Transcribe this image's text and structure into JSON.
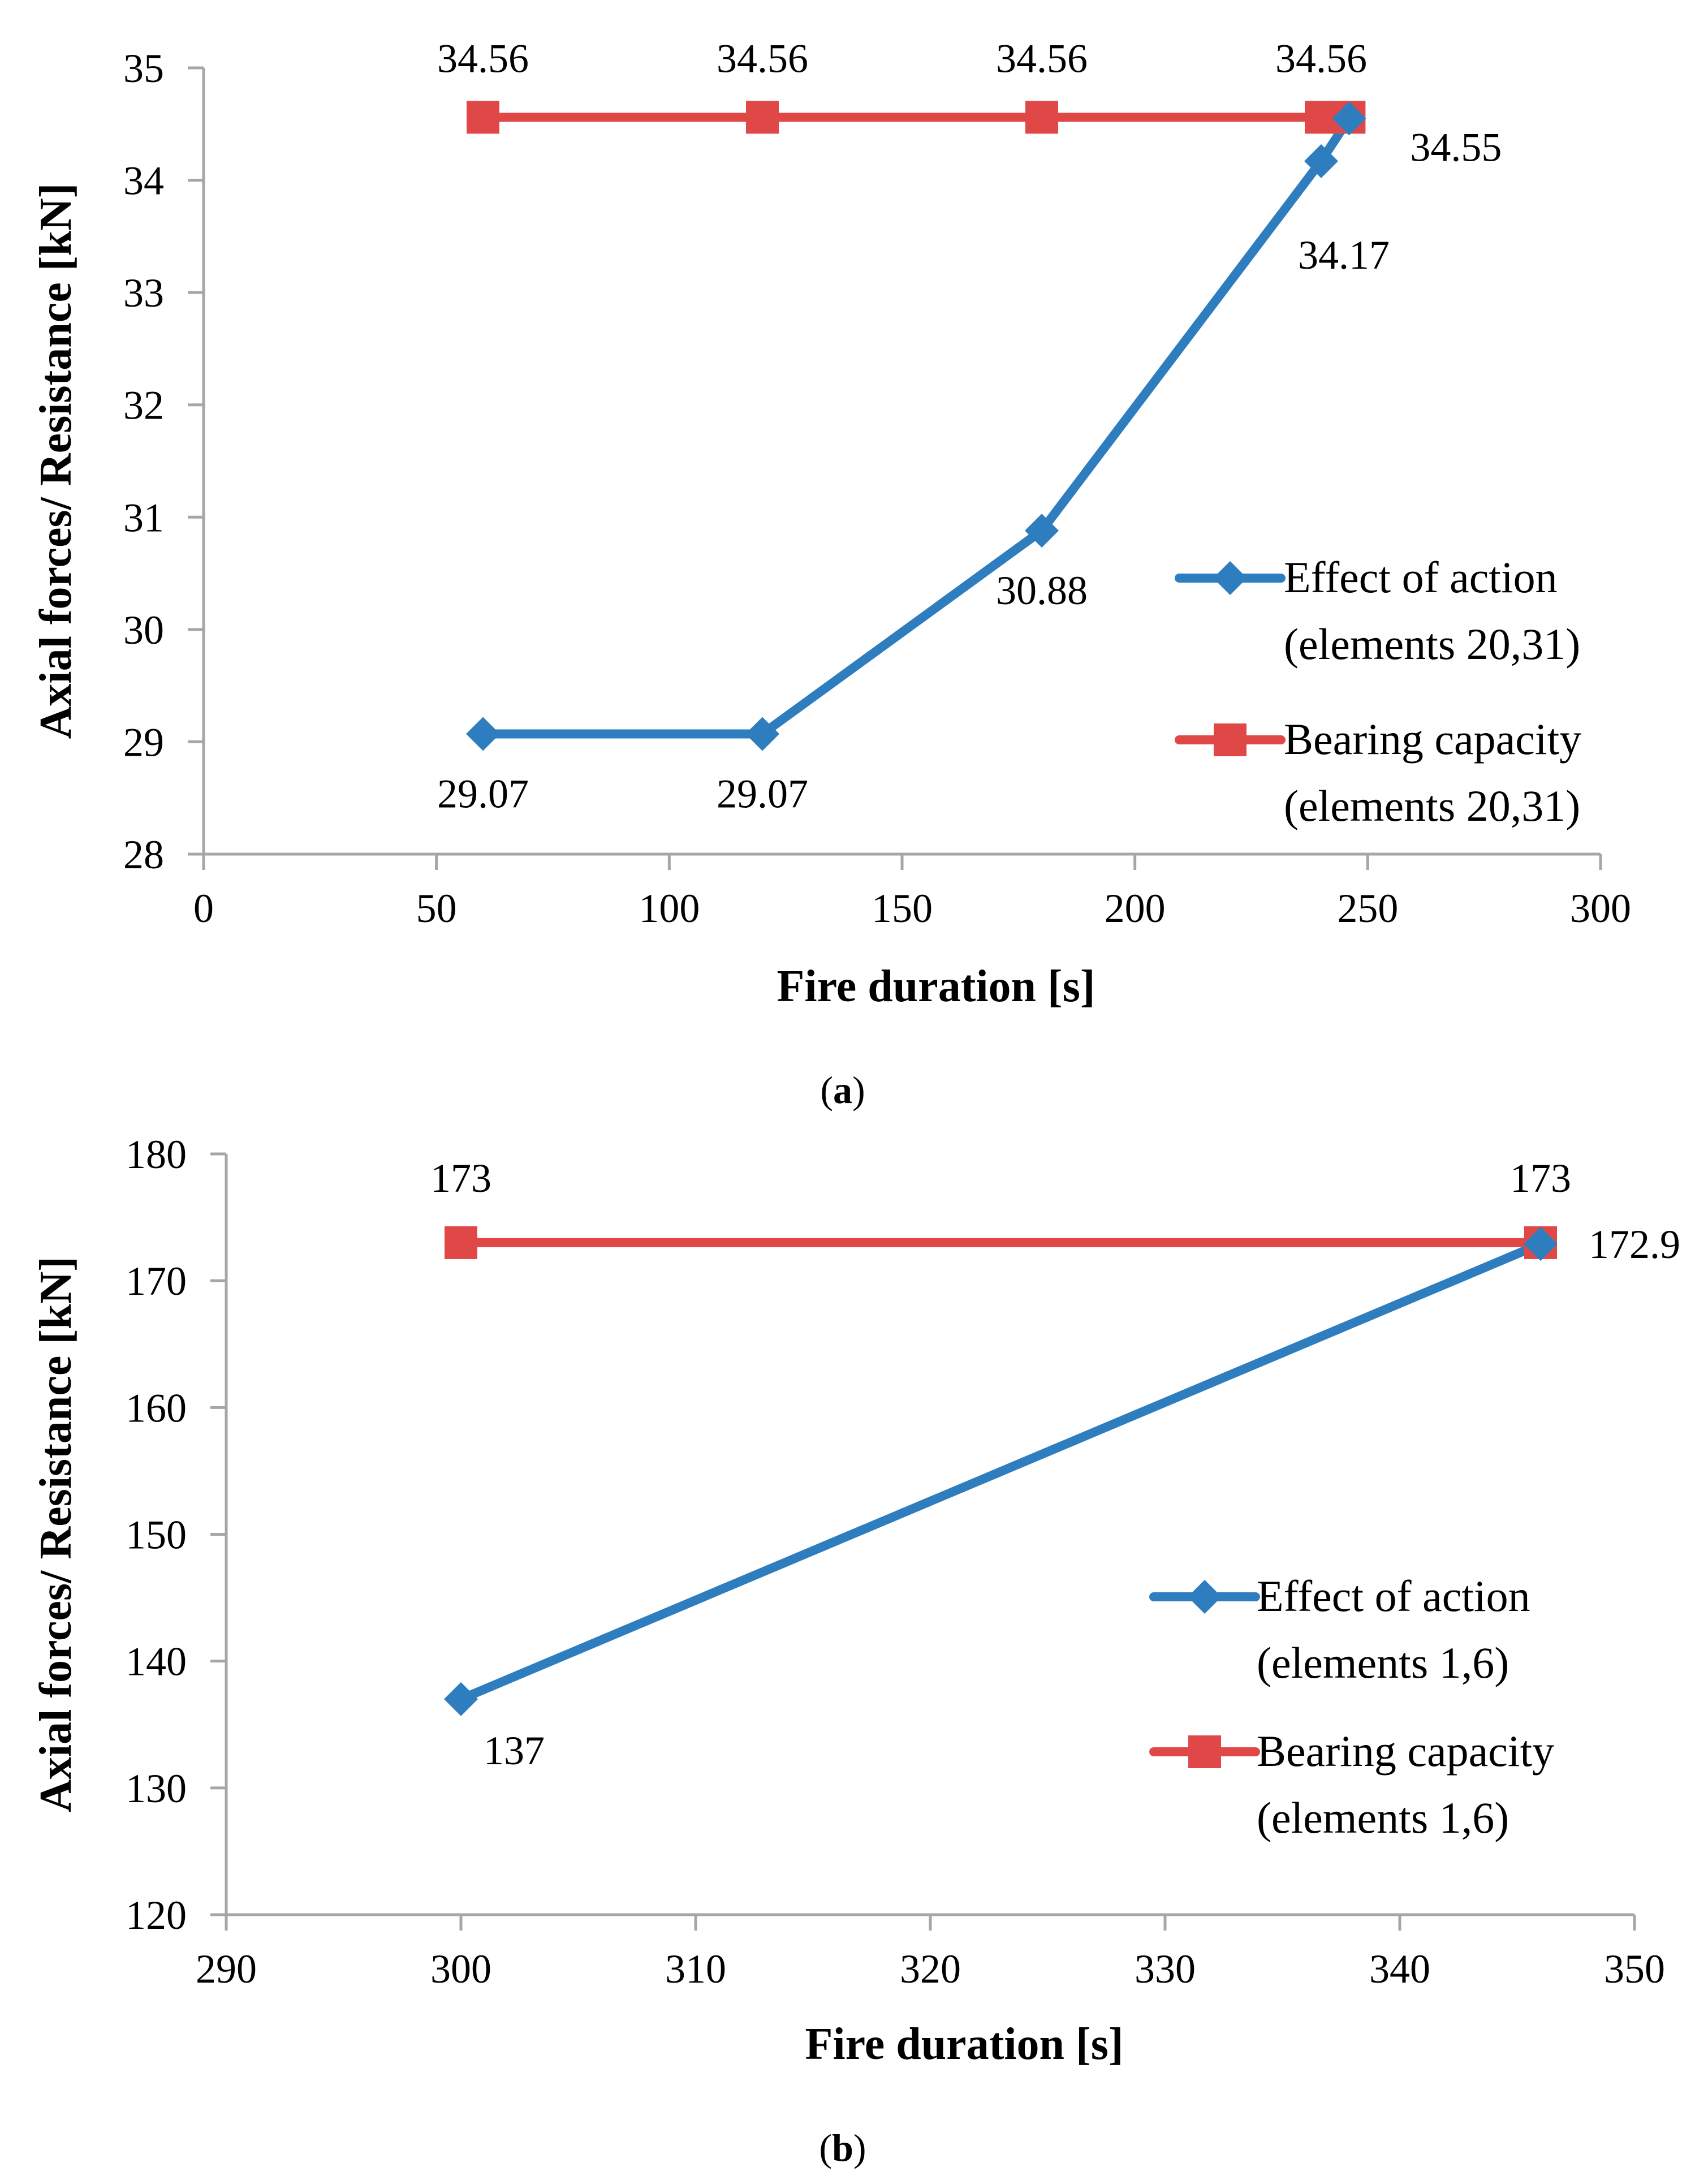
{
  "chart_data": [
    {
      "type": "line",
      "panel": "a",
      "panel_label": {
        "open": "(",
        "letter": "a",
        "close": ")"
      },
      "xlabel": "Fire duration [s]",
      "ylabel": "Axial forces/ Resistance [kN]",
      "xlim": [
        0,
        300
      ],
      "ylim": [
        28,
        35
      ],
      "x_ticks": [
        "0",
        "50",
        "100",
        "150",
        "200",
        "250",
        "300"
      ],
      "y_ticks": [
        "28",
        "29",
        "30",
        "31",
        "32",
        "33",
        "34",
        "35"
      ],
      "grid": false,
      "legend_position": "right",
      "series": [
        {
          "key": "effect",
          "name_line1": "Effect of action",
          "name_line2": "(elements 20,31)",
          "color": "#2e7ebf",
          "marker": "diamond",
          "x": [
            60,
            120,
            180,
            240,
            246
          ],
          "y": [
            29.07,
            29.07,
            30.88,
            34.17,
            34.55
          ],
          "labels": [
            "29.07",
            "29.07",
            "30.88",
            "34.17",
            "34.55"
          ]
        },
        {
          "key": "capacity",
          "name_line1": "Bearing capacity",
          "name_line2": "(elements 20,31)",
          "color": "#e04848",
          "marker": "square",
          "x": [
            60,
            120,
            180,
            240,
            246
          ],
          "y": [
            34.56,
            34.56,
            34.56,
            34.56,
            34.56
          ],
          "labels": [
            "34.56",
            "34.56",
            "34.56",
            "34.56",
            ""
          ]
        }
      ]
    },
    {
      "type": "line",
      "panel": "b",
      "panel_label": {
        "open": "(",
        "letter": "b",
        "close": ")"
      },
      "xlabel": "Fire duration [s]",
      "ylabel": "Axial forces/ Resistance [kN]",
      "xlim": [
        290,
        350
      ],
      "ylim": [
        120,
        180
      ],
      "x_ticks": [
        "290",
        "300",
        "310",
        "320",
        "330",
        "340",
        "350"
      ],
      "y_ticks": [
        "120",
        "130",
        "140",
        "150",
        "160",
        "170",
        "180"
      ],
      "grid": false,
      "legend_position": "right",
      "series": [
        {
          "key": "effect",
          "name_line1": "Effect of action",
          "name_line2": "(elements 1,6)",
          "color": "#2e7ebf",
          "marker": "diamond",
          "x": [
            300,
            346
          ],
          "y": [
            137,
            172.9
          ],
          "labels": [
            "137",
            "172.9"
          ]
        },
        {
          "key": "capacity",
          "name_line1": "Bearing capacity",
          "name_line2": "(elements 1,6)",
          "color": "#e04848",
          "marker": "square",
          "x": [
            300,
            346
          ],
          "y": [
            173,
            173
          ],
          "labels": [
            "173",
            "173"
          ]
        }
      ]
    }
  ]
}
